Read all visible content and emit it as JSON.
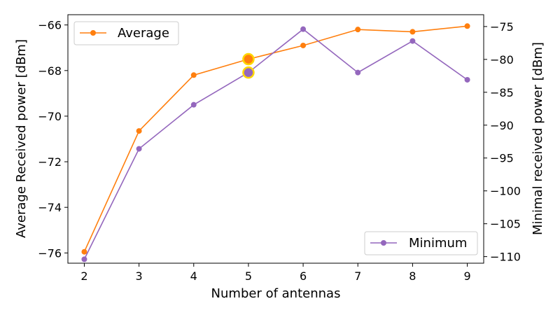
{
  "chart_data": {
    "type": "line",
    "xlabel": "Number of antennas",
    "ylabel_left": "Average Received power [dBm]",
    "ylabel_right": "Minimal received power [dBm]",
    "x": [
      2,
      3,
      4,
      5,
      6,
      7,
      8,
      9
    ],
    "xlim": [
      1.7,
      9.3
    ],
    "x_ticks": [
      "2",
      "3",
      "4",
      "5",
      "6",
      "7",
      "8",
      "9"
    ],
    "ylim_left": [
      -76.45,
      -65.55
    ],
    "y_ticks_left": [
      "−76",
      "−74",
      "−72",
      "−70",
      "−68",
      "−66"
    ],
    "y_tick_values_left": [
      -76,
      -74,
      -72,
      -70,
      -68,
      -66
    ],
    "ylim_right": [
      -111.0,
      -73.2
    ],
    "y_ticks_right": [
      "−110",
      "−105",
      "−100",
      "−95",
      "−90",
      "−85",
      "−80",
      "−75"
    ],
    "y_tick_values_right": [
      -110,
      -105,
      -100,
      -95,
      -90,
      -85,
      -80,
      -75
    ],
    "series": [
      {
        "name": "Average",
        "axis": "left",
        "color": "#ff7f0e",
        "values": [
          -75.95,
          -70.65,
          -68.2,
          -67.5,
          -66.9,
          -66.2,
          -66.3,
          -66.05
        ],
        "legend_position": "upper-left"
      },
      {
        "name": "Minimum",
        "axis": "right",
        "color": "#9467bd",
        "values": [
          -110.4,
          -93.6,
          -86.9,
          -82.0,
          -75.4,
          -82.0,
          -77.2,
          -83.1
        ],
        "legend_position": "lower-right"
      }
    ],
    "highlight": {
      "x": 5,
      "color": "#ffd700",
      "note": "highlighted points at x=5 on both series"
    }
  }
}
